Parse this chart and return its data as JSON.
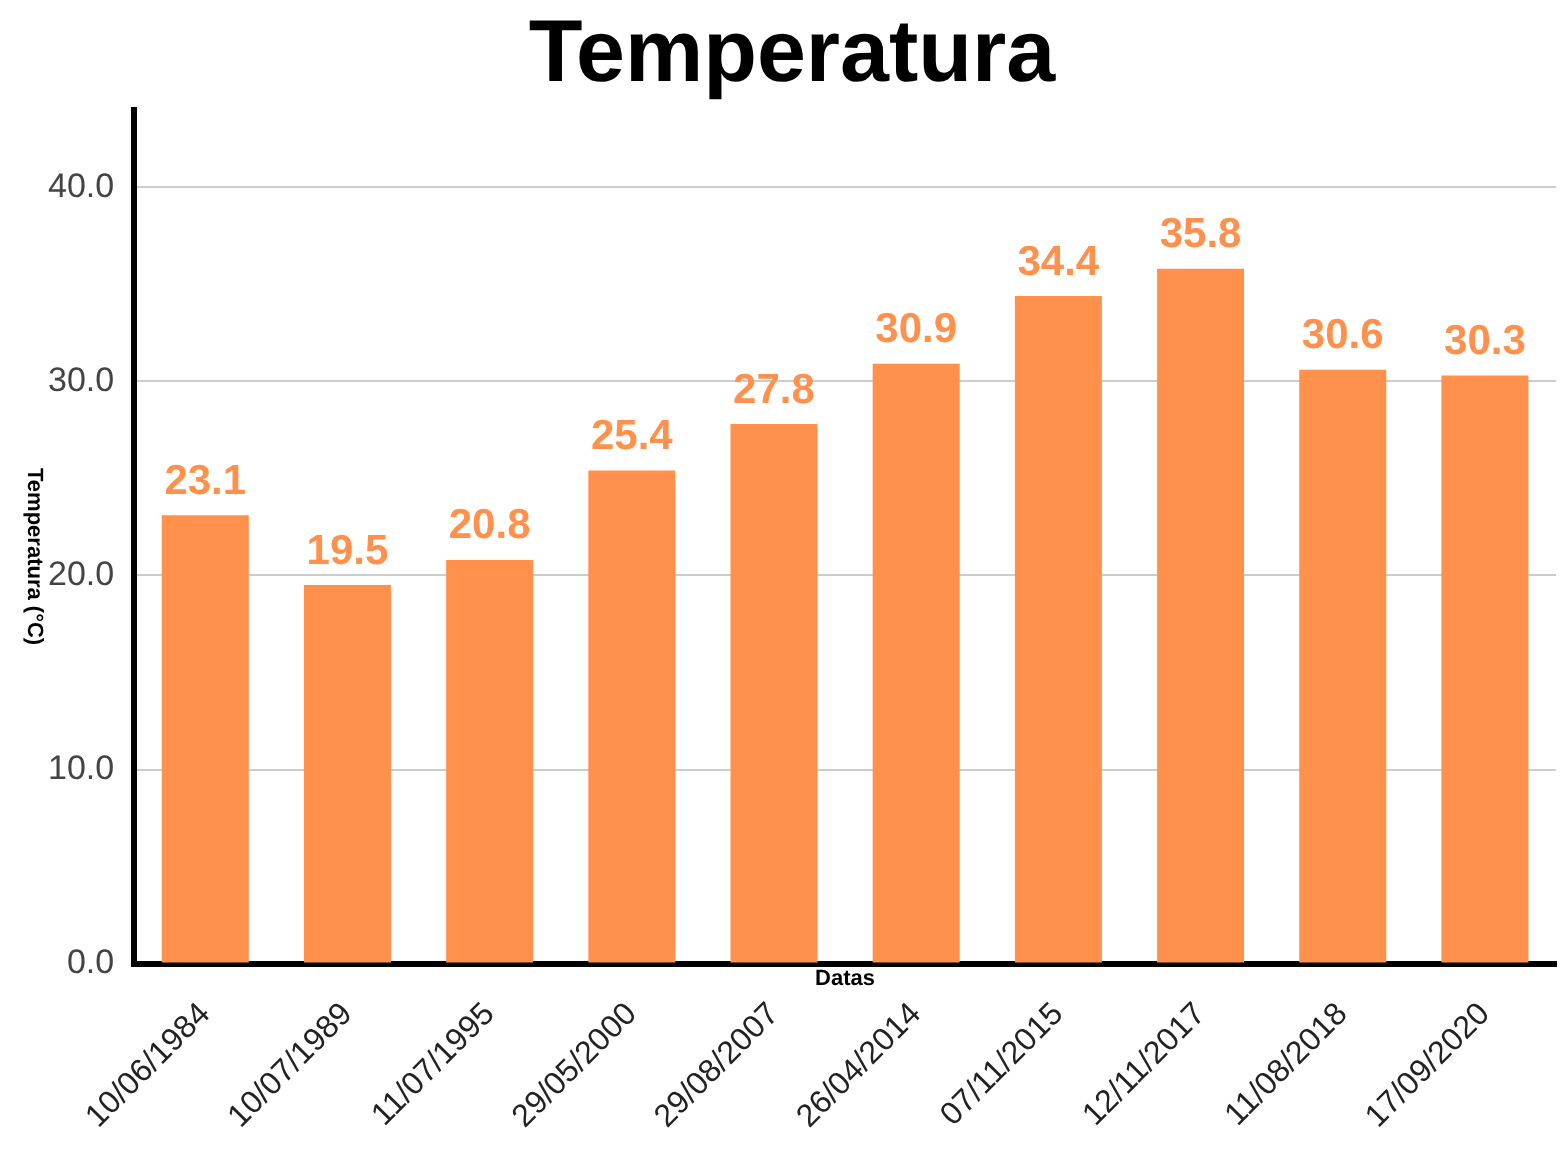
{
  "chart_data": {
    "type": "bar",
    "title": "Temperatura",
    "xlabel": "Datas",
    "ylabel": "Temperatura (°C)",
    "categories": [
      "10/06/1984",
      "10/07/1989",
      "11/07/1995",
      "29/05/2000",
      "29/08/2007",
      "26/04/2014",
      "07/11/2015",
      "12/11/2017",
      "11/08/2018",
      "17/09/2020"
    ],
    "values": [
      23.1,
      19.5,
      20.8,
      25.4,
      27.8,
      30.9,
      34.4,
      35.8,
      30.6,
      30.3
    ],
    "color": "#ff914d",
    "ylim": [
      0,
      44
    ],
    "yticks": [
      {
        "value": 0,
        "label": "0.0"
      },
      {
        "value": 10,
        "label": "10.0"
      },
      {
        "value": 20,
        "label": "20.0"
      },
      {
        "value": 30,
        "label": "30.0"
      },
      {
        "value": 40,
        "label": "40.0"
      }
    ],
    "grid": "y",
    "legend": false,
    "data_labels": true
  }
}
